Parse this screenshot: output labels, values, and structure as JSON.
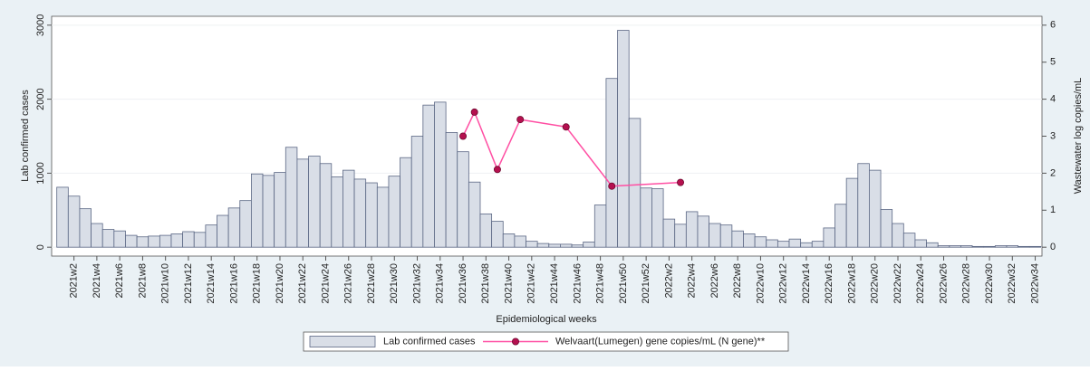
{
  "chart_data": {
    "type": "bar",
    "y_label": "Lab confirmed cases",
    "y2_label": "Wastewater log copies/mL",
    "x_label": "Epidemiological weeks",
    "categories": [
      null,
      "2021w2",
      null,
      "2021w4",
      null,
      "2021w6",
      null,
      "2021w8",
      null,
      "2021w10",
      null,
      "2021w12",
      null,
      "2021w14",
      null,
      "2021w16",
      null,
      "2021w18",
      null,
      "2021w20",
      null,
      "2021w22",
      null,
      "2021w24",
      null,
      "2021w26",
      null,
      "2021w28",
      null,
      "2021w30",
      null,
      "2021w32",
      null,
      "2021w34",
      null,
      "2021w36",
      null,
      "2021w38",
      null,
      "2021w40",
      null,
      "2021w42",
      null,
      "2021w44",
      null,
      "2021w46",
      null,
      "2021w48",
      null,
      "2021w50",
      null,
      "2021w52",
      null,
      "2022w2",
      null,
      "2022w4",
      null,
      "2022w6",
      null,
      "2022w8",
      null,
      "2022w10",
      null,
      "2022w12",
      null,
      "2022w14",
      null,
      "2022w16",
      null,
      "2022w18",
      null,
      "2022w20",
      null,
      "2022w22",
      null,
      "2022w24",
      null,
      "2022w26",
      null,
      "2022w28",
      null,
      "2022w30",
      null,
      "2022w32",
      null,
      "2022w34"
    ],
    "series": [
      {
        "name": "Lab confirmed cases",
        "color": "#d9dee7",
        "values": [
          810,
          690,
          520,
          320,
          240,
          220,
          160,
          140,
          150,
          160,
          180,
          210,
          200,
          300,
          430,
          530,
          630,
          990,
          970,
          1010,
          1350,
          1190,
          1230,
          1130,
          950,
          1040,
          920,
          870,
          810,
          960,
          1210,
          1500,
          1920,
          1960,
          1550,
          1290,
          880,
          450,
          350,
          180,
          150,
          80,
          50,
          40,
          40,
          30,
          70,
          570,
          2280,
          2930,
          1740,
          800,
          790,
          380,
          310,
          480,
          420,
          320,
          300,
          220,
          180,
          140,
          100,
          80,
          110,
          60,
          80,
          260,
          580,
          930,
          1130,
          1040,
          510,
          320,
          190,
          100,
          60,
          20,
          20,
          20,
          10,
          10,
          20,
          20,
          10,
          10
        ]
      },
      {
        "name": "Welvaart(Lumegen) gene copies/mL (N gene)**",
        "color": "#ff4fa3",
        "axis": "y2",
        "values": [
          null,
          null,
          null,
          null,
          null,
          null,
          null,
          null,
          null,
          null,
          null,
          null,
          null,
          null,
          null,
          null,
          null,
          null,
          null,
          null,
          null,
          null,
          null,
          null,
          null,
          null,
          null,
          null,
          null,
          null,
          null,
          null,
          null,
          null,
          null,
          3.0,
          3.65,
          null,
          2.1,
          null,
          3.45,
          null,
          null,
          null,
          3.25,
          null,
          null,
          null,
          1.65,
          null,
          null,
          null,
          null,
          null,
          1.75,
          null,
          null,
          null,
          null,
          null,
          null,
          null,
          null,
          null,
          null,
          null,
          null,
          null,
          null,
          null,
          null,
          null,
          null,
          null,
          null,
          null,
          null,
          null,
          null,
          null,
          null,
          null,
          null,
          null,
          null,
          null
        ]
      }
    ],
    "ylim": [
      -120,
      3120
    ],
    "yticks": [
      0,
      1000,
      2000,
      3000
    ],
    "y2lim": [
      -0.24,
      6.24
    ],
    "y2ticks": [
      0,
      1,
      2,
      3,
      4,
      5,
      6
    ],
    "grid": true
  }
}
